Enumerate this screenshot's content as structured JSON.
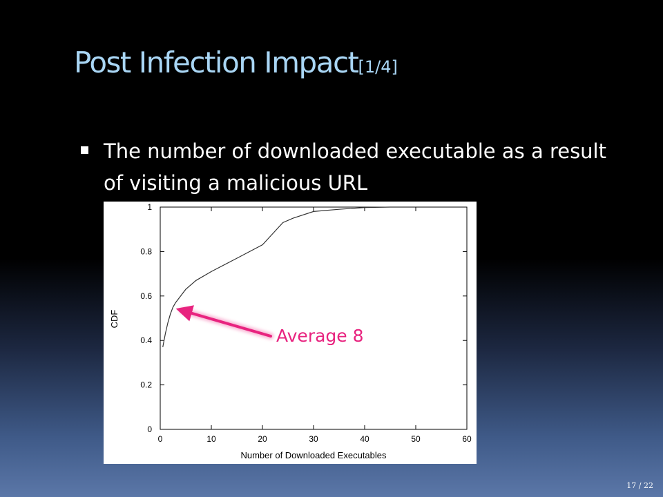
{
  "slide": {
    "title": "Post Infection Impact",
    "title_suffix": "[1/4]",
    "bullet": "The number of downloaded executable as a result of visiting a malicious URL",
    "annotation": "Average 8",
    "page_number": "17 / 22"
  },
  "colors": {
    "title": "#a9d6f5",
    "annotation": "#e8237f",
    "curve": "#333333"
  },
  "chart_data": {
    "type": "line",
    "title": "",
    "xlabel": "Number of Downloaded Executables",
    "ylabel": "CDF",
    "xlim": [
      0,
      60
    ],
    "ylim": [
      0,
      1
    ],
    "xticks": [
      0,
      10,
      20,
      30,
      40,
      50,
      60
    ],
    "yticks": [
      0,
      0.2,
      0.4,
      0.6,
      0.8,
      1
    ],
    "grid": false,
    "series": [
      {
        "x": [
          0.5,
          1,
          1.5,
          2,
          2.5,
          3,
          4,
          5,
          7,
          10,
          15,
          20,
          22,
          24,
          26,
          30,
          35,
          40,
          45
        ],
        "values": [
          0.37,
          0.43,
          0.48,
          0.52,
          0.55,
          0.57,
          0.6,
          0.63,
          0.67,
          0.71,
          0.77,
          0.83,
          0.88,
          0.93,
          0.95,
          0.98,
          0.99,
          0.998,
          1.0
        ]
      }
    ],
    "annotations": [
      {
        "text": "Average 8",
        "x": 3,
        "y": 0.55
      }
    ]
  }
}
